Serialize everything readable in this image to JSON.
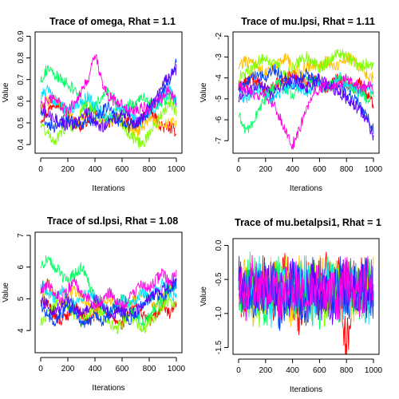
{
  "chart_data": [
    {
      "type": "line",
      "title": "Trace of omega, Rhat = 1.1",
      "xlabel": "Iterations",
      "ylabel": "Value",
      "xlim": [
        0,
        1000
      ],
      "ylim": [
        0.36,
        0.92
      ],
      "xticks": [
        0,
        200,
        400,
        600,
        800,
        1000
      ],
      "yticks": [
        0.4,
        0.5,
        0.6,
        0.7,
        0.8,
        0.9
      ],
      "xtick_labels": [
        "0",
        "200",
        "400",
        "600",
        "800",
        "1000"
      ],
      "ytick_labels": [
        "0.4",
        "0.5",
        "0.6",
        "0.7",
        "0.8",
        "0.9"
      ],
      "series": [
        {
          "color": "#FF0000",
          "values": [
            0.52,
            0.55,
            0.6,
            0.58,
            0.53,
            0.5,
            0.48,
            0.52,
            0.55,
            0.53,
            0.5,
            0.52,
            0.54,
            0.5,
            0.48,
            0.52,
            0.55,
            0.52,
            0.48,
            0.48,
            0.46
          ]
        },
        {
          "color": "#FFC000",
          "values": [
            0.55,
            0.6,
            0.62,
            0.58,
            0.55,
            0.5,
            0.52,
            0.55,
            0.5,
            0.48,
            0.5,
            0.52,
            0.5,
            0.48,
            0.45,
            0.48,
            0.52,
            0.5,
            0.48,
            0.5,
            0.5
          ]
        },
        {
          "color": "#80FF00",
          "values": [
            0.5,
            0.45,
            0.42,
            0.45,
            0.5,
            0.48,
            0.55,
            0.6,
            0.55,
            0.5,
            0.52,
            0.55,
            0.5,
            0.45,
            0.42,
            0.4,
            0.45,
            0.5,
            0.55,
            0.6,
            0.55
          ]
        },
        {
          "color": "#00FF60",
          "values": [
            0.7,
            0.75,
            0.72,
            0.7,
            0.68,
            0.65,
            0.6,
            0.55,
            0.58,
            0.62,
            0.65,
            0.6,
            0.55,
            0.58,
            0.6,
            0.62,
            0.6,
            0.58,
            0.6,
            0.62,
            0.6
          ]
        },
        {
          "color": "#00E0FF",
          "values": [
            0.62,
            0.65,
            0.6,
            0.58,
            0.55,
            0.58,
            0.6,
            0.62,
            0.58,
            0.55,
            0.52,
            0.55,
            0.58,
            0.55,
            0.52,
            0.5,
            0.55,
            0.58,
            0.62,
            0.65,
            0.6
          ]
        },
        {
          "color": "#0040FF",
          "values": [
            0.55,
            0.5,
            0.48,
            0.5,
            0.52,
            0.5,
            0.48,
            0.5,
            0.52,
            0.55,
            0.58,
            0.52,
            0.5,
            0.48,
            0.5,
            0.52,
            0.55,
            0.6,
            0.65,
            0.7,
            0.78
          ]
        },
        {
          "color": "#6000FF",
          "values": [
            0.58,
            0.55,
            0.52,
            0.5,
            0.48,
            0.5,
            0.53,
            0.55,
            0.5,
            0.48,
            0.5,
            0.52,
            0.55,
            0.53,
            0.5,
            0.52,
            0.58,
            0.62,
            0.68,
            0.72,
            0.75
          ]
        },
        {
          "color": "#FF00E0",
          "values": [
            0.58,
            0.6,
            0.62,
            0.58,
            0.55,
            0.6,
            0.65,
            0.7,
            0.82,
            0.7,
            0.62,
            0.6,
            0.58,
            0.55,
            0.56,
            0.58,
            0.55,
            0.6,
            0.62,
            0.65,
            0.6
          ]
        }
      ]
    },
    {
      "type": "line",
      "title": "Trace of mu.lpsi, Rhat = 1.11",
      "xlabel": "Iterations",
      "ylabel": "Value",
      "xlim": [
        0,
        1000
      ],
      "ylim": [
        -7.6,
        -1.8
      ],
      "xticks": [
        0,
        200,
        400,
        600,
        800,
        1000
      ],
      "yticks": [
        -7,
        -6,
        -5,
        -4,
        -3,
        -2
      ],
      "xtick_labels": [
        "0",
        "200",
        "400",
        "600",
        "800",
        "1000"
      ],
      "ytick_labels": [
        "-7",
        "-6",
        "-5",
        "-4",
        "-3",
        "-2"
      ],
      "series": [
        {
          "color": "#FF0000",
          "values": [
            -4.5,
            -4.2,
            -4.0,
            -4.3,
            -4.6,
            -4.5,
            -4.2,
            -4.0,
            -3.8,
            -4.0,
            -4.2,
            -4.0,
            -4.3,
            -4.5,
            -4.2,
            -4.0,
            -4.3,
            -4.5,
            -4.2,
            -4.8,
            -5.2
          ]
        },
        {
          "color": "#FFC000",
          "values": [
            -3.5,
            -3.2,
            -3.3,
            -3.5,
            -3.8,
            -3.6,
            -3.3,
            -3.0,
            -3.5,
            -3.8,
            -3.5,
            -3.3,
            -3.5,
            -3.2,
            -3.5,
            -3.3,
            -3.0,
            -3.2,
            -3.5,
            -3.8,
            -4.0
          ]
        },
        {
          "color": "#80FF00",
          "values": [
            -4.0,
            -3.8,
            -3.5,
            -3.2,
            -3.0,
            -3.3,
            -3.5,
            -3.8,
            -3.5,
            -3.2,
            -3.0,
            -3.2,
            -3.5,
            -3.3,
            -3.0,
            -2.8,
            -3.0,
            -3.2,
            -3.5,
            -3.3,
            -3.5
          ]
        },
        {
          "color": "#00FF60",
          "values": [
            -5.8,
            -6.5,
            -6.2,
            -5.5,
            -5.0,
            -4.5,
            -4.3,
            -4.5,
            -4.8,
            -4.5,
            -4.2,
            -4.0,
            -4.2,
            -4.5,
            -4.3,
            -4.0,
            -4.2,
            -4.5,
            -4.8,
            -5.0,
            -4.8
          ]
        },
        {
          "color": "#00E0FF",
          "values": [
            -4.8,
            -5.0,
            -4.7,
            -4.5,
            -4.8,
            -5.0,
            -4.7,
            -4.5,
            -4.3,
            -4.5,
            -4.7,
            -4.5,
            -4.3,
            -4.5,
            -4.2,
            -4.0,
            -4.3,
            -4.5,
            -4.7,
            -4.5,
            -4.5
          ]
        },
        {
          "color": "#0040FF",
          "values": [
            -4.5,
            -4.3,
            -4.0,
            -3.8,
            -4.0,
            -3.5,
            -3.8,
            -4.0,
            -4.3,
            -4.0,
            -3.8,
            -4.0,
            -4.2,
            -4.5,
            -4.3,
            -4.5,
            -4.8,
            -5.0,
            -5.3,
            -5.8,
            -6.5
          ]
        },
        {
          "color": "#6000FF",
          "values": [
            -5.0,
            -4.8,
            -4.5,
            -4.3,
            -4.5,
            -4.8,
            -4.5,
            -4.3,
            -4.0,
            -4.2,
            -4.5,
            -4.3,
            -4.0,
            -4.3,
            -4.5,
            -4.7,
            -5.0,
            -5.3,
            -5.5,
            -6.0,
            -6.8
          ]
        },
        {
          "color": "#FF00E0",
          "values": [
            -4.3,
            -4.5,
            -4.8,
            -5.0,
            -4.8,
            -5.2,
            -5.8,
            -6.5,
            -7.2,
            -6.5,
            -5.5,
            -4.8,
            -4.5,
            -4.3,
            -4.5,
            -4.3,
            -4.0,
            -4.3,
            -4.5,
            -4.3,
            -4.5
          ]
        }
      ]
    },
    {
      "type": "line",
      "title": "Trace of sd.lpsi, Rhat = 1.08",
      "xlabel": "Iterations",
      "ylabel": "Value",
      "xlim": [
        0,
        1000
      ],
      "ylim": [
        3.3,
        7.1
      ],
      "xticks": [
        0,
        200,
        400,
        600,
        800,
        1000
      ],
      "yticks": [
        4,
        5,
        6,
        7
      ],
      "xtick_labels": [
        "0",
        "200",
        "400",
        "600",
        "800",
        "1000"
      ],
      "ytick_labels": [
        "4",
        "5",
        "6",
        "7"
      ],
      "series": [
        {
          "color": "#FF0000",
          "values": [
            5.2,
            4.8,
            4.5,
            4.3,
            4.5,
            4.8,
            4.5,
            4.3,
            4.5,
            4.8,
            4.5,
            4.3,
            4.2,
            4.5,
            4.8,
            4.5,
            4.3,
            4.5,
            4.8,
            4.5,
            4.8
          ]
        },
        {
          "color": "#FFC000",
          "values": [
            4.8,
            5.5,
            5.2,
            4.8,
            5.0,
            5.3,
            5.0,
            4.8,
            4.5,
            4.8,
            5.0,
            4.8,
            4.5,
            4.8,
            5.0,
            5.2,
            5.0,
            4.8,
            5.0,
            5.3,
            5.5
          ]
        },
        {
          "color": "#80FF00",
          "values": [
            4.2,
            4.5,
            4.8,
            5.0,
            4.8,
            4.5,
            4.3,
            4.5,
            4.8,
            4.5,
            4.3,
            4.0,
            4.2,
            4.5,
            4.3,
            4.0,
            4.3,
            4.5,
            4.8,
            5.0,
            4.8
          ]
        },
        {
          "color": "#00FF60",
          "values": [
            6.0,
            6.3,
            6.0,
            5.8,
            5.5,
            5.8,
            6.0,
            5.5,
            5.0,
            4.8,
            4.5,
            4.8,
            5.0,
            4.8,
            4.5,
            4.3,
            4.5,
            4.8,
            5.0,
            5.3,
            5.5
          ]
        },
        {
          "color": "#00E0FF",
          "values": [
            5.5,
            5.2,
            5.0,
            5.3,
            5.0,
            4.8,
            5.0,
            5.2,
            5.0,
            4.8,
            4.5,
            4.8,
            5.0,
            4.8,
            5.0,
            5.2,
            5.0,
            5.3,
            5.5,
            5.2,
            5.0
          ]
        },
        {
          "color": "#0040FF",
          "values": [
            4.8,
            4.5,
            4.3,
            4.5,
            4.8,
            4.5,
            4.3,
            4.2,
            4.5,
            4.3,
            4.5,
            4.8,
            4.5,
            4.3,
            4.5,
            4.8,
            5.0,
            5.2,
            5.0,
            5.3,
            5.5
          ]
        },
        {
          "color": "#6000FF",
          "values": [
            5.0,
            4.8,
            4.6,
            4.8,
            5.0,
            4.7,
            4.5,
            4.7,
            5.0,
            4.8,
            4.6,
            4.5,
            4.7,
            4.5,
            4.6,
            4.8,
            5.0,
            5.2,
            5.3,
            5.5,
            5.7
          ]
        },
        {
          "color": "#FF00E0",
          "values": [
            5.3,
            5.5,
            5.2,
            5.0,
            5.3,
            5.5,
            5.2,
            5.0,
            4.8,
            5.0,
            5.2,
            5.0,
            4.8,
            5.0,
            5.2,
            5.5,
            5.3,
            5.6,
            5.8,
            5.5,
            5.8
          ]
        }
      ]
    },
    {
      "type": "line",
      "title": "Trace of mu.betalpsi1, Rhat = 1",
      "xlabel": "Iterations",
      "ylabel": "Value",
      "xlim": [
        0,
        1000
      ],
      "ylim": [
        -1.6,
        0.1
      ],
      "xticks": [
        0,
        200,
        400,
        600,
        800,
        1000
      ],
      "yticks": [
        -1.5,
        -1.0,
        -0.5,
        0.0
      ],
      "xtick_labels": [
        "0",
        "200",
        "400",
        "600",
        "800",
        "1000"
      ],
      "ytick_labels": [
        "-1.5",
        "-1.0",
        "-0.5",
        "0.0"
      ],
      "series": [
        {
          "color": "#FF0000",
          "values": [
            -0.6,
            -0.8,
            -0.5,
            -0.7,
            -0.4,
            -0.9,
            -0.6,
            -0.3,
            -0.7,
            -1.0,
            -0.5,
            -0.6,
            -0.8,
            -0.4,
            -0.7,
            -0.5,
            -1.5,
            -0.6,
            -0.4,
            -0.7,
            -0.6
          ]
        },
        {
          "color": "#FFC000",
          "values": [
            -0.7,
            -0.5,
            -0.9,
            -0.6,
            -0.8,
            -0.4,
            -0.7,
            -0.6,
            -0.9,
            -0.5,
            -0.7,
            -0.8,
            -0.5,
            -0.6,
            -0.9,
            -0.6,
            -0.5,
            -0.8,
            -0.6,
            -0.7,
            -0.5
          ]
        },
        {
          "color": "#80FF00",
          "values": [
            -0.5,
            -0.7,
            -0.6,
            -0.9,
            -0.5,
            -0.6,
            -0.8,
            -0.5,
            -0.6,
            -0.8,
            -0.7,
            -0.5,
            -0.6,
            -0.9,
            -0.5,
            -0.7,
            -0.6,
            -0.5,
            -0.8,
            -0.6,
            -0.7
          ]
        },
        {
          "color": "#00FF60",
          "values": [
            -0.8,
            -0.6,
            -0.4,
            -0.7,
            -0.9,
            -0.6,
            -0.5,
            -0.8,
            -0.6,
            -0.4,
            -0.8,
            -0.6,
            -0.9,
            -0.5,
            -0.6,
            -0.8,
            -0.5,
            -0.7,
            -0.9,
            -0.5,
            -0.6
          ]
        },
        {
          "color": "#00E0FF",
          "values": [
            -0.6,
            -0.9,
            -0.7,
            -0.5,
            -0.6,
            -1.0,
            -0.7,
            -0.5,
            -0.8,
            -0.6,
            -0.5,
            -0.9,
            -0.7,
            -0.6,
            -0.5,
            -0.8,
            -0.7,
            -0.5,
            -0.6,
            -0.9,
            -0.7
          ]
        },
        {
          "color": "#0040FF",
          "values": [
            -0.7,
            -0.5,
            -0.8,
            -0.6,
            -0.7,
            -0.5,
            -0.9,
            -0.7,
            -0.5,
            -0.7,
            -0.9,
            -0.5,
            -0.6,
            -0.8,
            -0.7,
            -0.5,
            -0.8,
            -0.6,
            -0.7,
            -0.5,
            -0.8
          ]
        },
        {
          "color": "#6000FF",
          "values": [
            -0.5,
            -0.7,
            -0.6,
            -0.8,
            -0.5,
            -0.7,
            -0.6,
            -0.9,
            -0.5,
            -0.6,
            -0.7,
            -0.5,
            -0.8,
            -0.6,
            -0.9,
            -0.6,
            -0.5,
            -0.7,
            -0.6,
            -0.8,
            -0.6
          ]
        },
        {
          "color": "#FF00E0",
          "values": [
            -0.6,
            -0.8,
            -0.5,
            -0.7,
            -0.6,
            -0.5,
            -0.8,
            -0.6,
            -0.7,
            -0.5,
            -0.8,
            -0.6,
            -0.5,
            -0.7,
            -0.6,
            -0.8,
            -0.5,
            -0.6,
            -0.7,
            -0.5,
            -0.6
          ]
        }
      ]
    }
  ]
}
